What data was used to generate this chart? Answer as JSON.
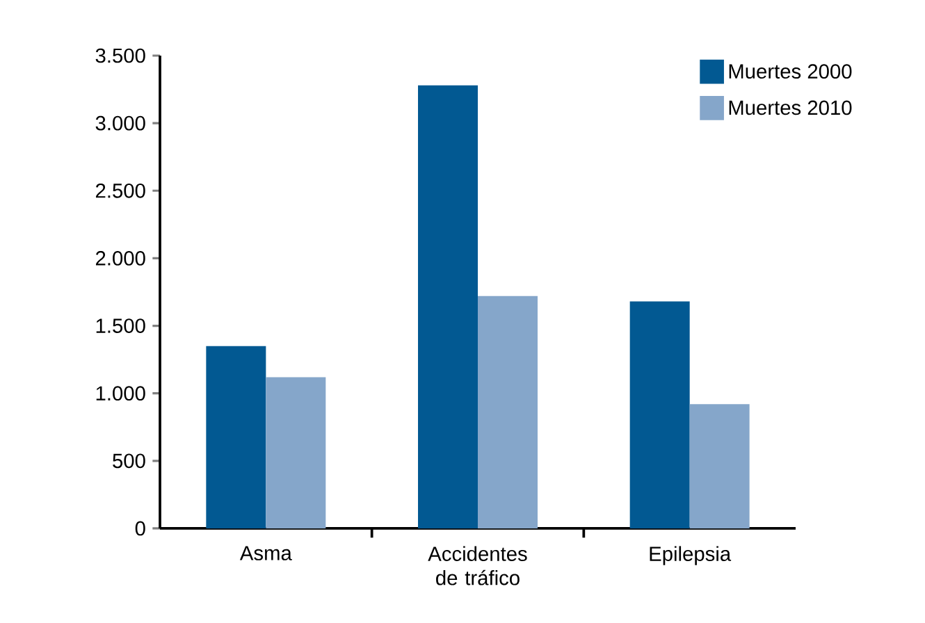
{
  "chart_data": {
    "type": "bar",
    "categories": [
      "Asma",
      "Accidentes de tráfico",
      "Epilepsia"
    ],
    "series": [
      {
        "name": "Muertes 2000",
        "color": "#025992",
        "values": [
          1350,
          3280,
          1680
        ]
      },
      {
        "name": "Muertes 2010",
        "color": "#85a6ca",
        "values": [
          1120,
          1720,
          920
        ]
      }
    ],
    "ylim": [
      0,
      3500
    ],
    "yticks": [
      {
        "value": 0,
        "label": "0"
      },
      {
        "value": 500,
        "label": "500"
      },
      {
        "value": 1000,
        "label": "1.000"
      },
      {
        "value": 1500,
        "label": "1.500"
      },
      {
        "value": 2000,
        "label": "2.000"
      },
      {
        "value": 2500,
        "label": "2.500"
      },
      {
        "value": 3000,
        "label": "3.000"
      },
      {
        "value": 3500,
        "label": "3.500"
      }
    ],
    "legend": "top right"
  }
}
